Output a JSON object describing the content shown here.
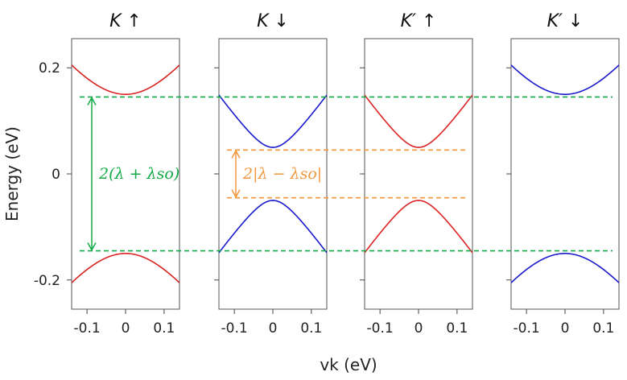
{
  "chart_data": {
    "type": "line",
    "xlabel": "vk (eV)",
    "ylabel": "Energy (eV)",
    "xlim": [
      -0.14,
      0.14
    ],
    "ylim": [
      -0.255,
      0.255
    ],
    "xticks": [
      -0.1,
      0,
      0.1
    ],
    "xtick_labels": [
      "-0.1",
      "0",
      "0.1"
    ],
    "yticks": [
      0.2,
      0,
      -0.2
    ],
    "ytick_labels": [
      "0.2",
      "0",
      "-0.2"
    ],
    "colors": {
      "red": "#dd2222",
      "blue": "#1a1acc",
      "green": "#11aa44",
      "orange": "#f0963c"
    },
    "panels": [
      {
        "title": "K ↑",
        "bands": [
          {
            "name": "conduction",
            "gap": 0.15,
            "color": "red"
          },
          {
            "name": "valence",
            "gap": -0.15,
            "color": "red"
          }
        ]
      },
      {
        "title": "K ↓",
        "bands": [
          {
            "name": "conduction",
            "gap": 0.05,
            "color": "blue"
          },
          {
            "name": "valence",
            "gap": -0.05,
            "color": "blue"
          }
        ]
      },
      {
        "title": "K′ ↑",
        "bands": [
          {
            "name": "conduction",
            "gap": 0.05,
            "color": "red"
          },
          {
            "name": "valence",
            "gap": -0.05,
            "color": "red"
          }
        ]
      },
      {
        "title": "K′ ↓",
        "bands": [
          {
            "name": "conduction",
            "gap": 0.15,
            "color": "blue"
          },
          {
            "name": "valence",
            "gap": -0.15,
            "color": "blue"
          }
        ]
      }
    ],
    "reference_lines": [
      {
        "y": 0.145,
        "color": "green",
        "from_panel": 0,
        "to_panel": 3
      },
      {
        "y": -0.145,
        "color": "green",
        "from_panel": 0,
        "to_panel": 3
      },
      {
        "y": 0.045,
        "color": "orange",
        "from_panel": 1,
        "to_panel": 2
      },
      {
        "y": -0.045,
        "color": "orange",
        "from_panel": 1,
        "to_panel": 2
      }
    ],
    "annotations": [
      {
        "text": "2(λ + λso)",
        "color": "green",
        "panel": 0,
        "y_from": -0.145,
        "y_to": 0.145
      },
      {
        "text": "2|λ − λso|",
        "color": "orange",
        "panel": 1,
        "y_from": -0.045,
        "y_to": 0.045
      }
    ]
  }
}
